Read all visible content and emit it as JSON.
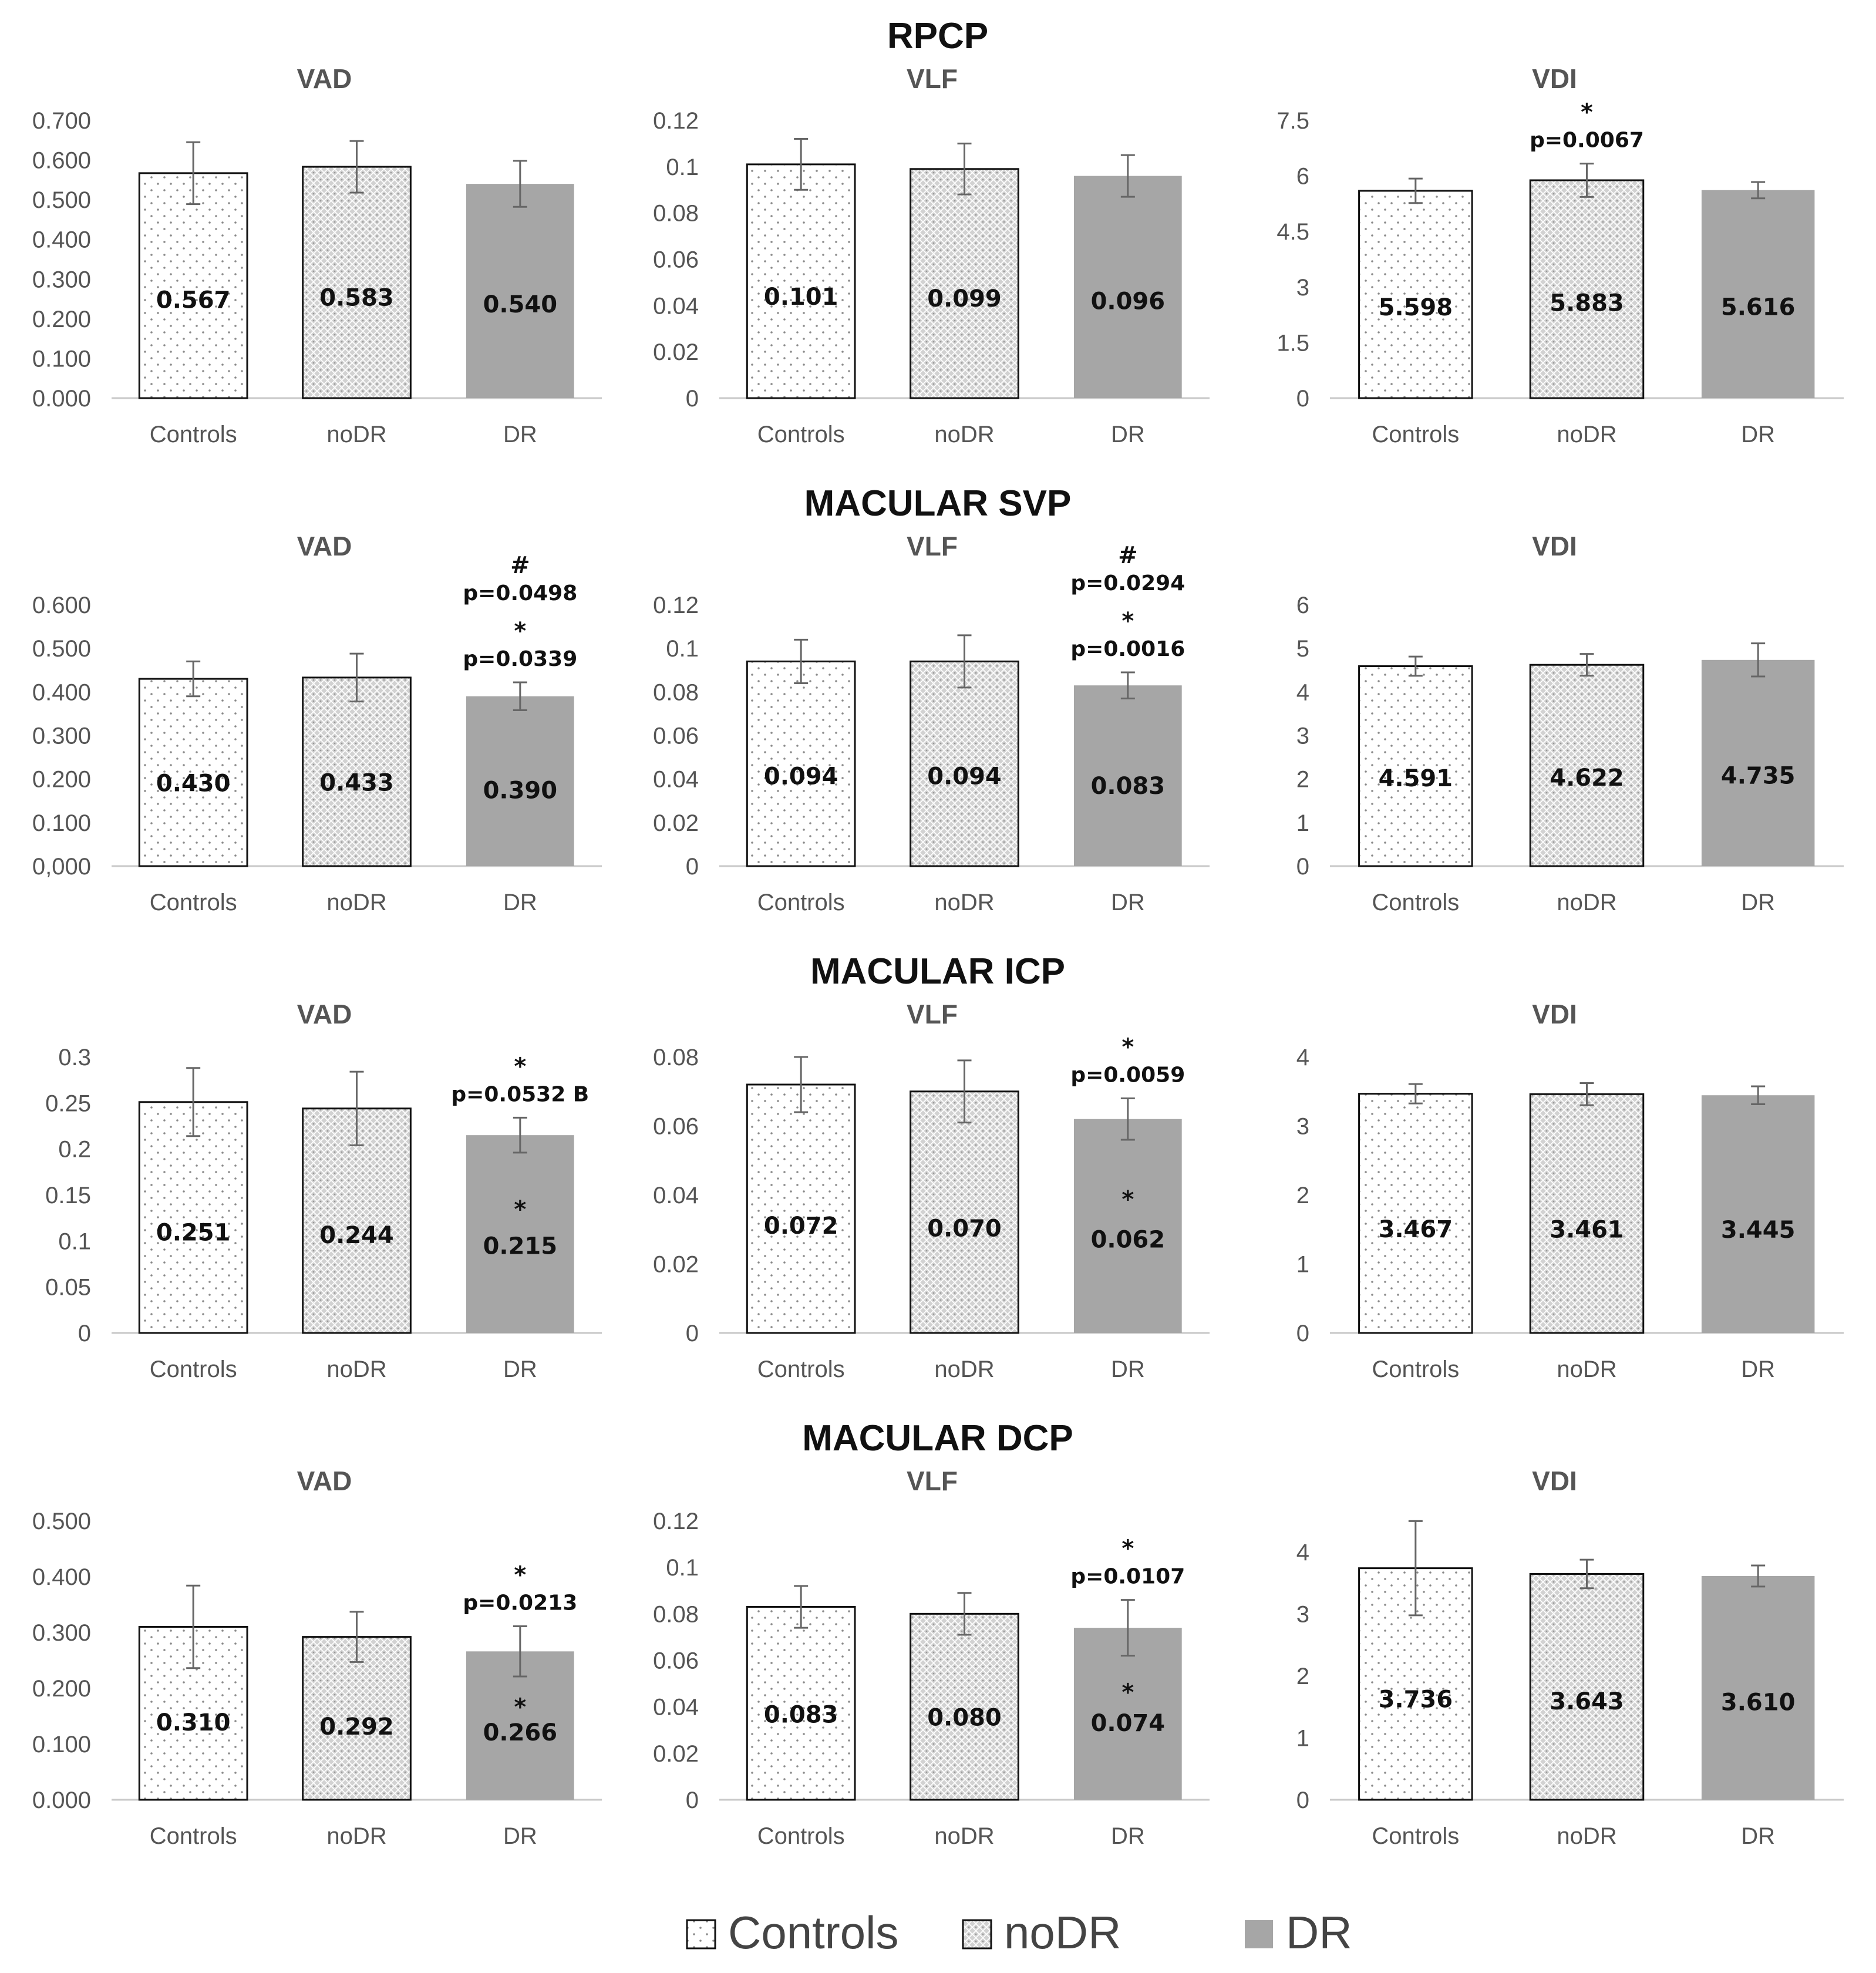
{
  "legend": [
    {
      "key": "controls",
      "label": "Controls"
    },
    {
      "key": "nodr",
      "label": "noDR"
    },
    {
      "key": "dr",
      "label": "DR"
    }
  ],
  "colors": {
    "dr_fill": "#a6a6a6",
    "nodr_fill": "#cccccc",
    "controls_fill": "#ffffff",
    "axis": "#c8c8c8",
    "outline": "#111111"
  },
  "chart_data": [
    {
      "type": "bar",
      "section": "RPCP",
      "title": "VAD",
      "categories": [
        "Controls",
        "noDR",
        "DR"
      ],
      "values": [
        0.567,
        0.583,
        0.54
      ],
      "value_labels": [
        "0.567",
        "0.583",
        "0.540"
      ],
      "errors": [
        0.078,
        0.065,
        0.058
      ],
      "ylim": [
        0,
        0.7
      ],
      "yticks": [
        "0.000",
        "0.100",
        "0.200",
        "0.300",
        "0.400",
        "0.500",
        "0.600",
        "0.700"
      ],
      "annotations": []
    },
    {
      "type": "bar",
      "section": "RPCP",
      "title": "VLF",
      "categories": [
        "Controls",
        "noDR",
        "DR"
      ],
      "values": [
        0.101,
        0.099,
        0.096
      ],
      "value_labels": [
        "0.101",
        "0.099",
        "0.096"
      ],
      "errors": [
        0.011,
        0.011,
        0.009
      ],
      "ylim": [
        0,
        0.12
      ],
      "yticks": [
        "0",
        "0.02",
        "0.04",
        "0.06",
        "0.08",
        "0.1",
        "0.12"
      ],
      "annotations": []
    },
    {
      "type": "bar",
      "section": "RPCP",
      "title": "VDI",
      "categories": [
        "Controls",
        "noDR",
        "DR"
      ],
      "values": [
        5.598,
        5.883,
        5.616
      ],
      "value_labels": [
        "5.598",
        "5.883",
        "5.616"
      ],
      "errors": [
        0.33,
        0.45,
        0.22
      ],
      "ylim": [
        0,
        7.5
      ],
      "yticks": [
        "0",
        "1.5",
        "3",
        "4.5",
        "6",
        "7.5"
      ],
      "annotations": [
        {
          "bar": 1,
          "position": "top",
          "lines": [
            "*",
            "p=0.0067"
          ]
        }
      ]
    },
    {
      "type": "bar",
      "section": "MACULAR SVP",
      "title": "VAD",
      "categories": [
        "Controls",
        "noDR",
        "DR"
      ],
      "values": [
        0.43,
        0.433,
        0.39
      ],
      "value_labels": [
        "0.430",
        "0.433",
        "0.390"
      ],
      "errors": [
        0.04,
        0.055,
        0.032
      ],
      "ylim": [
        0,
        0.6
      ],
      "yticks": [
        "0,000",
        "0.100",
        "0.200",
        "0.300",
        "0.400",
        "0.500",
        "0.600"
      ],
      "annotations": [
        {
          "bar": 2,
          "position": "top",
          "lines": [
            "#",
            "p=0.0498",
            "*",
            "p=0.0339"
          ]
        }
      ]
    },
    {
      "type": "bar",
      "section": "MACULAR SVP",
      "title": "VLF",
      "categories": [
        "Controls",
        "noDR",
        "DR"
      ],
      "values": [
        0.094,
        0.094,
        0.083
      ],
      "value_labels": [
        "0.094",
        "0.094",
        "0.083"
      ],
      "errors": [
        0.01,
        0.012,
        0.006
      ],
      "ylim": [
        0,
        0.12
      ],
      "yticks": [
        "0",
        "0.02",
        "0.04",
        "0.06",
        "0.08",
        "0.1",
        "0.12"
      ],
      "annotations": [
        {
          "bar": 2,
          "position": "top",
          "lines": [
            "#",
            "p=0.0294",
            "*",
            "p=0.0016"
          ]
        }
      ]
    },
    {
      "type": "bar",
      "section": "MACULAR SVP",
      "title": "VDI",
      "categories": [
        "Controls",
        "noDR",
        "DR"
      ],
      "values": [
        4.591,
        4.622,
        4.735
      ],
      "value_labels": [
        "4.591",
        "4.622",
        "4.735"
      ],
      "errors": [
        0.22,
        0.25,
        0.38
      ],
      "ylim": [
        0,
        6
      ],
      "yticks": [
        "0",
        "1",
        "2",
        "3",
        "4",
        "5",
        "6"
      ],
      "annotations": []
    },
    {
      "type": "bar",
      "section": "MACULAR ICP",
      "title": "VAD",
      "categories": [
        "Controls",
        "noDR",
        "DR"
      ],
      "values": [
        0.251,
        0.244,
        0.215
      ],
      "value_labels": [
        "0.251",
        "0.244",
        "0.215"
      ],
      "errors": [
        0.037,
        0.04,
        0.019
      ],
      "ylim": [
        0,
        0.3
      ],
      "yticks": [
        "0",
        "0.05",
        "0.1",
        "0.15",
        "0.2",
        "0.25",
        "0.3"
      ],
      "annotations": [
        {
          "bar": 2,
          "position": "top",
          "lines": [
            "*",
            "p=0.0532 B"
          ]
        },
        {
          "bar": 2,
          "position": "inside",
          "lines": [
            "*"
          ]
        }
      ]
    },
    {
      "type": "bar",
      "section": "MACULAR ICP",
      "title": "VLF",
      "categories": [
        "Controls",
        "noDR",
        "DR"
      ],
      "values": [
        0.072,
        0.07,
        0.062
      ],
      "value_labels": [
        "0.072",
        "0.070",
        "0.062"
      ],
      "errors": [
        0.008,
        0.009,
        0.006
      ],
      "ylim": [
        0,
        0.08
      ],
      "yticks": [
        "0",
        "0.02",
        "0.04",
        "0.06",
        "0.08"
      ],
      "annotations": [
        {
          "bar": 2,
          "position": "top",
          "lines": [
            "*",
            "p=0.0059"
          ]
        },
        {
          "bar": 2,
          "position": "inside",
          "lines": [
            "*"
          ]
        }
      ]
    },
    {
      "type": "bar",
      "section": "MACULAR ICP",
      "title": "VDI",
      "categories": [
        "Controls",
        "noDR",
        "DR"
      ],
      "values": [
        3.467,
        3.461,
        3.445
      ],
      "value_labels": [
        "3.467",
        "3.461",
        "3.445"
      ],
      "errors": [
        0.14,
        0.16,
        0.13
      ],
      "ylim": [
        0,
        4
      ],
      "yticks": [
        "0",
        "1",
        "2",
        "3",
        "4"
      ],
      "annotations": []
    },
    {
      "type": "bar",
      "section": "MACULAR DCP",
      "title": "VAD",
      "categories": [
        "Controls",
        "noDR",
        "DR"
      ],
      "values": [
        0.31,
        0.292,
        0.266
      ],
      "value_labels": [
        "0.310",
        "0.292",
        "0.266"
      ],
      "errors": [
        0.074,
        0.045,
        0.045
      ],
      "ylim": [
        0,
        0.5
      ],
      "yticks": [
        "0.000",
        "0.100",
        "0.200",
        "0.300",
        "0.400",
        "0.500"
      ],
      "annotations": [
        {
          "bar": 2,
          "position": "top",
          "lines": [
            "*",
            "p=0.0213"
          ]
        },
        {
          "bar": 2,
          "position": "inside",
          "lines": [
            "*"
          ]
        }
      ]
    },
    {
      "type": "bar",
      "section": "MACULAR DCP",
      "title": "VLF",
      "categories": [
        "Controls",
        "noDR",
        "DR"
      ],
      "values": [
        0.083,
        0.08,
        0.074
      ],
      "value_labels": [
        "0.083",
        "0.080",
        "0.074"
      ],
      "errors": [
        0.009,
        0.009,
        0.012
      ],
      "ylim": [
        0,
        0.12
      ],
      "yticks": [
        "0",
        "0.02",
        "0.04",
        "0.06",
        "0.08",
        "0.1",
        "0.12"
      ],
      "annotations": [
        {
          "bar": 2,
          "position": "top",
          "lines": [
            "*",
            "p=0.0107"
          ]
        },
        {
          "bar": 2,
          "position": "inside",
          "lines": [
            "*"
          ]
        }
      ]
    },
    {
      "type": "bar",
      "section": "MACULAR DCP",
      "title": "VDI",
      "categories": [
        "Controls",
        "noDR",
        "DR"
      ],
      "values": [
        3.736,
        3.643,
        3.61
      ],
      "value_labels": [
        "3.736",
        "3.643",
        "3.610"
      ],
      "errors": [
        0.76,
        0.23,
        0.17
      ],
      "ylim": [
        0,
        4.5
      ],
      "yticks": [
        "0",
        "1",
        "2",
        "3",
        "4"
      ],
      "annotations": []
    }
  ]
}
